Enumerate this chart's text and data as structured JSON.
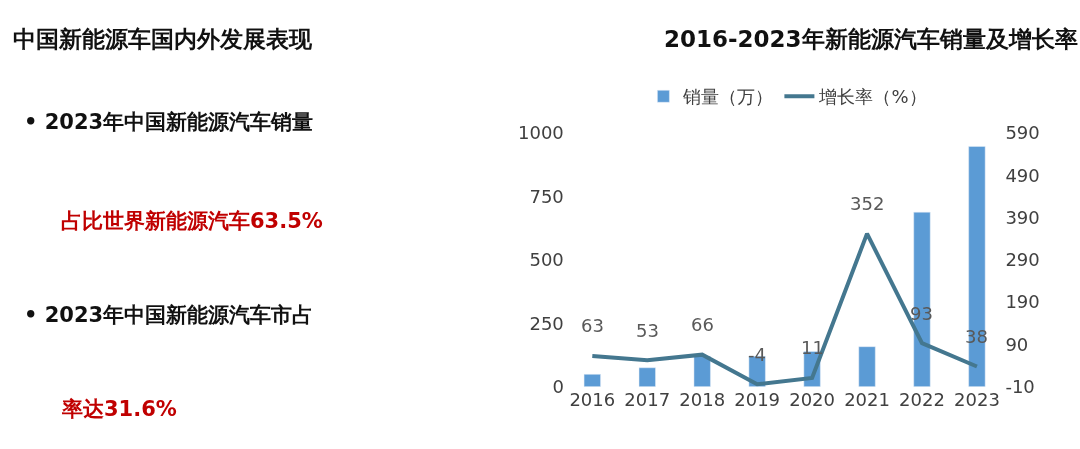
{
  "chart_data": [
    {
      "type": "other",
      "title": "中国新能源车国内外发展表现",
      "annotations": [
        "• 2023年中国新能源汽车销量",
        "占比世界新能源汽车63.5%",
        "• 2023年中国新能源汽车市占",
        "率达31.6%"
      ]
    },
    {
      "type": "bar",
      "title": "2016-2023年新能源汽车销量及增长率",
      "categories": [
        "2016",
        "2017",
        "2018",
        "2019",
        "2020",
        "2021",
        "2022",
        "2023"
      ],
      "series": [
        {
          "name": "销量（万）",
          "type": "bar",
          "color": "#5b9bd5",
          "values": [
            49,
            75,
            120,
            120,
            139,
            158,
            688,
            947
          ]
        },
        {
          "name": "增长率（%）",
          "type": "line",
          "axis": "y2",
          "color": "#44778f",
          "values": [
            63,
            53,
            66,
            -4,
            11,
            352,
            93,
            38
          ],
          "value_labels": [
            "63",
            "53",
            "66",
            "-4",
            "11",
            "352",
            "93",
            "38"
          ]
        }
      ],
      "ylim": [
        0,
        1000
      ],
      "yticks": [
        0,
        250,
        500,
        750,
        1000
      ],
      "y2lim": [
        -10,
        590
      ],
      "y2ticks": [
        -10,
        90,
        190,
        290,
        390,
        490,
        590
      ],
      "legend": "top"
    }
  ]
}
